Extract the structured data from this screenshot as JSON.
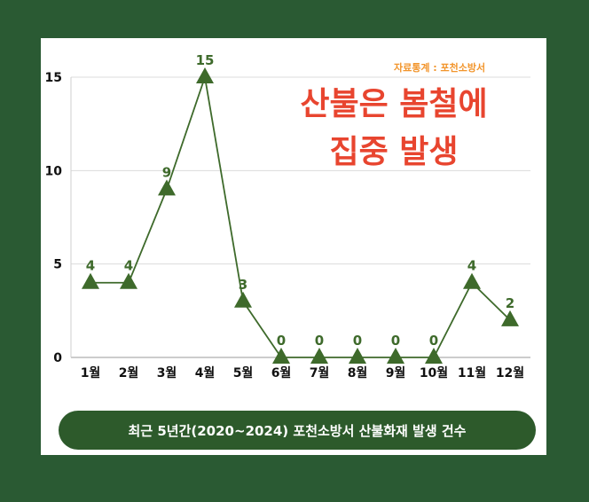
{
  "source": "자료통계 : 포천소방서",
  "headline": {
    "line1": "산불은 봄철에",
    "line2": "집중 발생"
  },
  "caption": "최근 5년간(2020~2024) 포천소방서 산불화재 발생 건수",
  "colors": {
    "background": "#2a5a33",
    "line": "#3e6a2b",
    "headline": "#e8452f",
    "source": "#f2952c",
    "caption_bg": "#2d5a2b"
  },
  "chart_data": {
    "type": "line",
    "categories": [
      "1월",
      "2월",
      "3월",
      "4월",
      "5월",
      "6월",
      "7월",
      "8월",
      "9월",
      "10월",
      "11월",
      "12월"
    ],
    "values": [
      4,
      4,
      9,
      15,
      3,
      0,
      0,
      0,
      0,
      0,
      4,
      2
    ],
    "ylim": [
      0,
      15
    ],
    "yticks": [
      0,
      5,
      10,
      15
    ],
    "grid": true,
    "marker": "triangle"
  }
}
